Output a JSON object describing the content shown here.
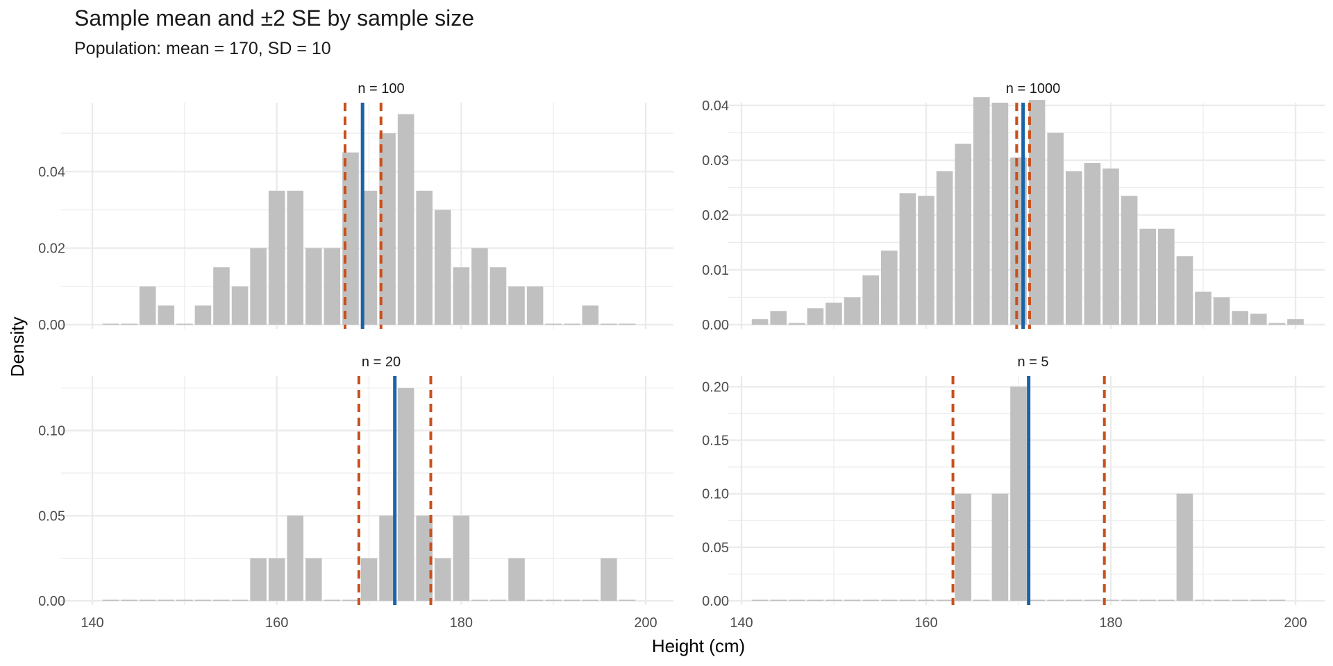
{
  "chart_data": {
    "type": "bar",
    "title": "Sample mean and ±2 SE by sample size",
    "subtitle": "Population: mean = 170, SD = 10",
    "xlabel": "Height (cm)",
    "ylabel": "Density",
    "xlim": [
      140,
      200
    ],
    "x_ticks": [
      140,
      160,
      180,
      200
    ],
    "bin_width": 2,
    "colors": {
      "bar": "#c0c0c0",
      "mean_line": "#1a63a8",
      "se_line": "#c8501c",
      "grid": "#ebebeb"
    },
    "panels": [
      {
        "label": "n = 100",
        "ylim": [
          0,
          0.058
        ],
        "y_ticks": [
          0.0,
          0.02,
          0.04
        ],
        "y_tick_labels": [
          "0.00",
          "0.02",
          "0.04"
        ],
        "mean": 169.3,
        "se_lower": 167.4,
        "se_upper": 171.3,
        "bins": [
          {
            "x": 142,
            "y": 0.0
          },
          {
            "x": 144,
            "y": 0.0
          },
          {
            "x": 146,
            "y": 0.01
          },
          {
            "x": 148,
            "y": 0.005
          },
          {
            "x": 150,
            "y": 0.0
          },
          {
            "x": 152,
            "y": 0.005
          },
          {
            "x": 154,
            "y": 0.015
          },
          {
            "x": 156,
            "y": 0.01
          },
          {
            "x": 158,
            "y": 0.02
          },
          {
            "x": 160,
            "y": 0.035
          },
          {
            "x": 162,
            "y": 0.035
          },
          {
            "x": 164,
            "y": 0.02
          },
          {
            "x": 166,
            "y": 0.02
          },
          {
            "x": 168,
            "y": 0.045
          },
          {
            "x": 170,
            "y": 0.035
          },
          {
            "x": 172,
            "y": 0.05
          },
          {
            "x": 174,
            "y": 0.055
          },
          {
            "x": 176,
            "y": 0.035
          },
          {
            "x": 178,
            "y": 0.03
          },
          {
            "x": 180,
            "y": 0.015
          },
          {
            "x": 182,
            "y": 0.02
          },
          {
            "x": 184,
            "y": 0.015
          },
          {
            "x": 186,
            "y": 0.01
          },
          {
            "x": 188,
            "y": 0.01
          },
          {
            "x": 190,
            "y": 0.0
          },
          {
            "x": 192,
            "y": 0.0
          },
          {
            "x": 194,
            "y": 0.005
          },
          {
            "x": 196,
            "y": 0.0
          },
          {
            "x": 198,
            "y": 0.0
          }
        ]
      },
      {
        "label": "n = 1000",
        "ylim": [
          0,
          0.0405
        ],
        "y_ticks": [
          0.0,
          0.01,
          0.02,
          0.03,
          0.04
        ],
        "y_tick_labels": [
          "0.00",
          "0.01",
          "0.02",
          "0.03",
          "0.04"
        ],
        "mean": 170.5,
        "se_lower": 169.8,
        "se_upper": 171.2,
        "bins": [
          {
            "x": 142,
            "y": 0.001
          },
          {
            "x": 144,
            "y": 0.0025
          },
          {
            "x": 146,
            "y": 0.0003
          },
          {
            "x": 148,
            "y": 0.003
          },
          {
            "x": 150,
            "y": 0.004
          },
          {
            "x": 152,
            "y": 0.005
          },
          {
            "x": 154,
            "y": 0.009
          },
          {
            "x": 156,
            "y": 0.0135
          },
          {
            "x": 158,
            "y": 0.024
          },
          {
            "x": 160,
            "y": 0.0235
          },
          {
            "x": 162,
            "y": 0.028
          },
          {
            "x": 164,
            "y": 0.033
          },
          {
            "x": 166,
            "y": 0.0415
          },
          {
            "x": 168,
            "y": 0.0405
          },
          {
            "x": 170,
            "y": 0.0305
          },
          {
            "x": 172,
            "y": 0.041
          },
          {
            "x": 174,
            "y": 0.035
          },
          {
            "x": 176,
            "y": 0.028
          },
          {
            "x": 178,
            "y": 0.0295
          },
          {
            "x": 180,
            "y": 0.0285
          },
          {
            "x": 182,
            "y": 0.0235
          },
          {
            "x": 184,
            "y": 0.0175
          },
          {
            "x": 186,
            "y": 0.0175
          },
          {
            "x": 188,
            "y": 0.0125
          },
          {
            "x": 190,
            "y": 0.006
          },
          {
            "x": 192,
            "y": 0.005
          },
          {
            "x": 194,
            "y": 0.0025
          },
          {
            "x": 196,
            "y": 0.002
          },
          {
            "x": 198,
            "y": 0.0003
          },
          {
            "x": 200,
            "y": 0.001
          }
        ]
      },
      {
        "label": "n = 20",
        "ylim": [
          0,
          0.132
        ],
        "y_ticks": [
          0.0,
          0.05,
          0.1
        ],
        "y_tick_labels": [
          "0.00",
          "0.05",
          "0.10"
        ],
        "mean": 172.8,
        "se_lower": 168.9,
        "se_upper": 176.7,
        "bins": [
          {
            "x": 142,
            "y": 0.0
          },
          {
            "x": 144,
            "y": 0.0
          },
          {
            "x": 146,
            "y": 0.0
          },
          {
            "x": 148,
            "y": 0.0
          },
          {
            "x": 150,
            "y": 0.0
          },
          {
            "x": 152,
            "y": 0.0
          },
          {
            "x": 154,
            "y": 0.0
          },
          {
            "x": 156,
            "y": 0.0
          },
          {
            "x": 158,
            "y": 0.025
          },
          {
            "x": 160,
            "y": 0.025
          },
          {
            "x": 162,
            "y": 0.05
          },
          {
            "x": 164,
            "y": 0.025
          },
          {
            "x": 166,
            "y": 0.0
          },
          {
            "x": 168,
            "y": 0.0
          },
          {
            "x": 170,
            "y": 0.025
          },
          {
            "x": 172,
            "y": 0.05
          },
          {
            "x": 174,
            "y": 0.125
          },
          {
            "x": 176,
            "y": 0.05
          },
          {
            "x": 178,
            "y": 0.025
          },
          {
            "x": 180,
            "y": 0.05
          },
          {
            "x": 182,
            "y": 0.0
          },
          {
            "x": 184,
            "y": 0.0
          },
          {
            "x": 186,
            "y": 0.025
          },
          {
            "x": 188,
            "y": 0.0
          },
          {
            "x": 190,
            "y": 0.0
          },
          {
            "x": 192,
            "y": 0.0
          },
          {
            "x": 194,
            "y": 0.0
          },
          {
            "x": 196,
            "y": 0.025
          },
          {
            "x": 198,
            "y": 0.0
          }
        ]
      },
      {
        "label": "n = 5",
        "ylim": [
          0,
          0.21
        ],
        "y_ticks": [
          0.0,
          0.05,
          0.1,
          0.15,
          0.2
        ],
        "y_tick_labels": [
          "0.00",
          "0.05",
          "0.10",
          "0.15",
          "0.20"
        ],
        "mean": 171.1,
        "se_lower": 162.9,
        "se_upper": 179.3,
        "bins": [
          {
            "x": 142,
            "y": 0.0
          },
          {
            "x": 144,
            "y": 0.0
          },
          {
            "x": 146,
            "y": 0.0
          },
          {
            "x": 148,
            "y": 0.0
          },
          {
            "x": 150,
            "y": 0.0
          },
          {
            "x": 152,
            "y": 0.0
          },
          {
            "x": 154,
            "y": 0.0
          },
          {
            "x": 156,
            "y": 0.0
          },
          {
            "x": 158,
            "y": 0.0
          },
          {
            "x": 160,
            "y": 0.0
          },
          {
            "x": 162,
            "y": 0.0
          },
          {
            "x": 164,
            "y": 0.1
          },
          {
            "x": 166,
            "y": 0.0
          },
          {
            "x": 168,
            "y": 0.1
          },
          {
            "x": 170,
            "y": 0.2
          },
          {
            "x": 172,
            "y": 0.0
          },
          {
            "x": 174,
            "y": 0.0
          },
          {
            "x": 176,
            "y": 0.0
          },
          {
            "x": 178,
            "y": 0.0
          },
          {
            "x": 180,
            "y": 0.0
          },
          {
            "x": 182,
            "y": 0.0
          },
          {
            "x": 184,
            "y": 0.0
          },
          {
            "x": 186,
            "y": 0.0
          },
          {
            "x": 188,
            "y": 0.1
          },
          {
            "x": 190,
            "y": 0.0
          },
          {
            "x": 192,
            "y": 0.0
          },
          {
            "x": 194,
            "y": 0.0
          },
          {
            "x": 196,
            "y": 0.0
          },
          {
            "x": 198,
            "y": 0.0
          }
        ]
      }
    ]
  }
}
